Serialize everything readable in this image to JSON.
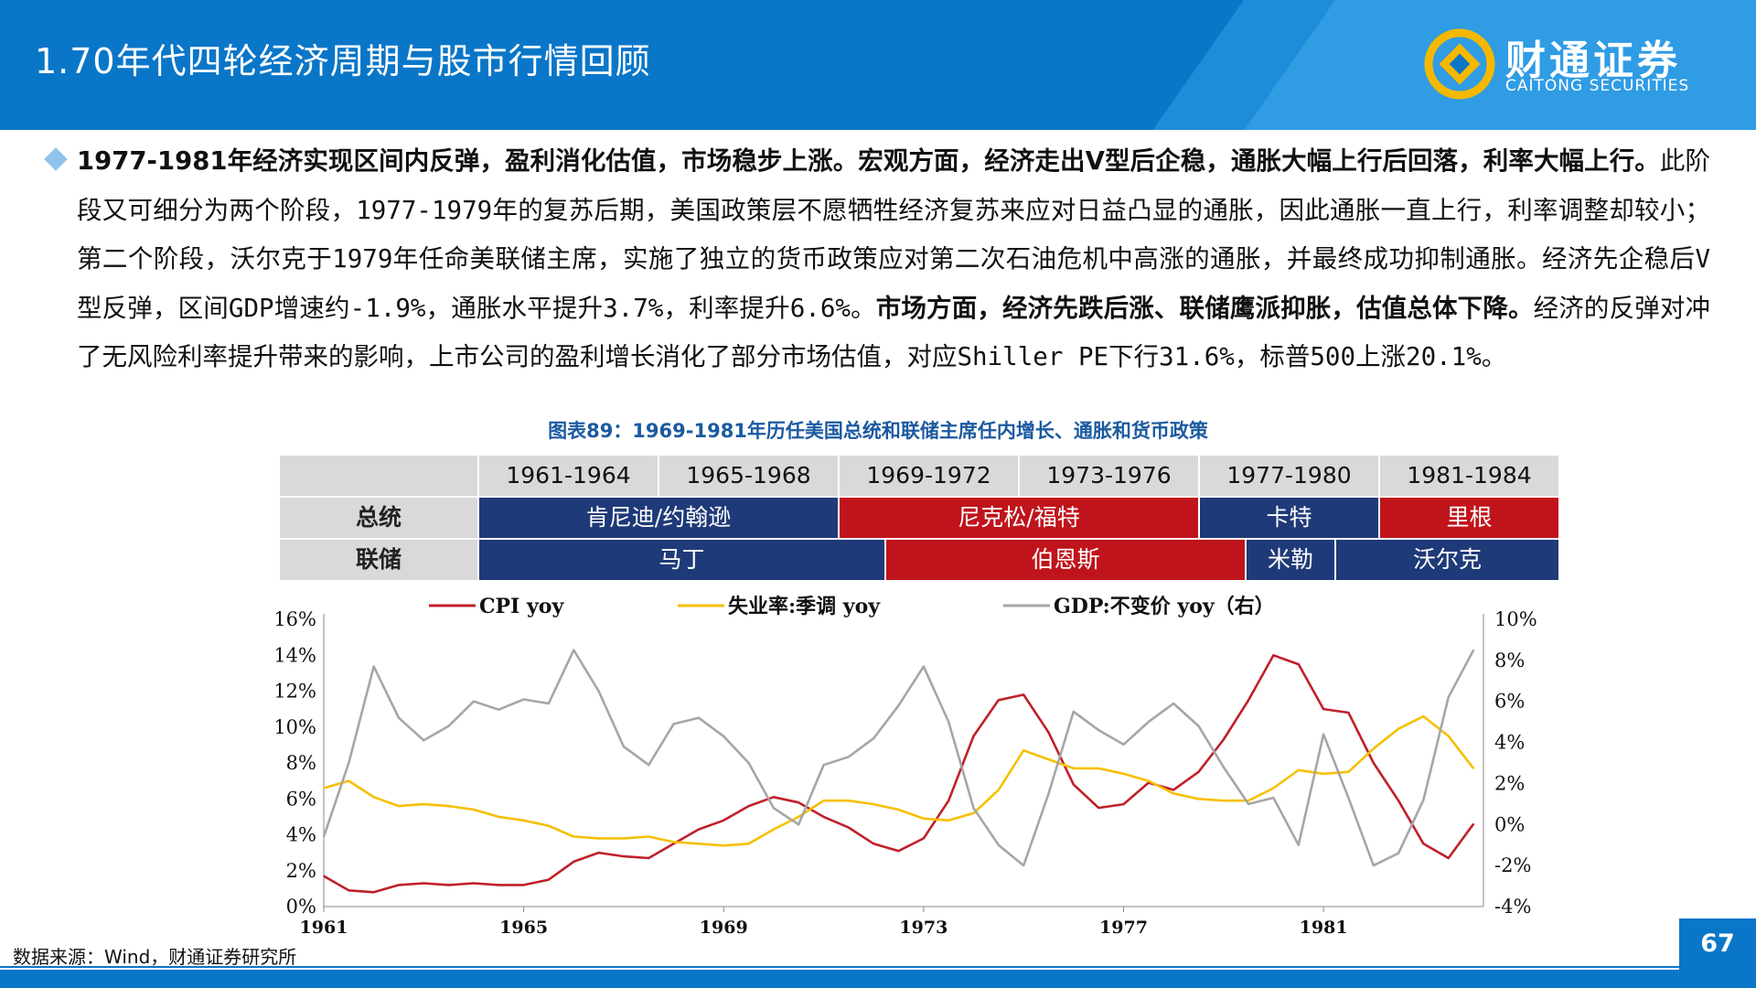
{
  "header": {
    "title": "1.70年代四轮经济周期与股市行情回顾",
    "logo_cn": "财通证券",
    "logo_en": "CAITONG SECURITIES"
  },
  "paragraph": {
    "bold_lead": "1977-1981年经济实现区间内反弹，盈利消化估值，市场稳步上涨。宏观方面，经济走出V型后企稳，通胀大幅上行后回落，利率大幅上行。",
    "text1": "此阶段又可细分为两个阶段，1977-1979年的复苏后期，美国政策层不愿牺牲经济复苏来应对日益凸显的通胀，因此通胀一直上行，利率调整却较小；第二个阶段，沃尔克于1979年任命美联储主席，实施了独立的货币政策应对第二次石油危机中高涨的通胀，并最终成功抑制通胀。经济先企稳后V型反弹，区间GDP增速约-1.9%，通胀水平提升3.7%，利率提升6.6%。",
    "bold_mid": "市场方面，经济先跌后涨、联储鹰派抑胀，估值总体下降。",
    "text2": "经济的反弹对冲了无风险利率提升带来的影响，上市公司的盈利增长消化了部分市场估值，对应Shiller PE下行31.6%，标普500上涨20.1%。"
  },
  "chart_title": "图表89：1969-1981年历任美国总统和联储主席任内增长、通胀和货币政策",
  "table": {
    "periods": [
      "1961-1964",
      "1965-1968",
      "1969-1972",
      "1973-1976",
      "1977-1980",
      "1981-1984"
    ],
    "president_label": "总统",
    "fed_label": "联储",
    "presidents": [
      "肯尼迪/约翰逊",
      "尼克松/福特",
      "卡特",
      "里根"
    ],
    "feds": [
      "马丁",
      "伯恩斯",
      "米勒",
      "沃尔克"
    ]
  },
  "colors": {
    "brand_blue": "#0a76c8",
    "navy": "#1f3a78",
    "red": "#c0141c",
    "cpi": "#c0202a",
    "unemployment": "#f5c000",
    "gdp": "#a6a6a6"
  },
  "chart_data": {
    "type": "line",
    "legend": [
      "CPI yoy",
      "失业率:季调 yoy",
      "GDP:不变价 yoy（右）"
    ],
    "x_ticks": [
      "1961",
      "1965",
      "1969",
      "1973",
      "1977",
      "1981"
    ],
    "y_left_ticks": [
      "0%",
      "2%",
      "4%",
      "6%",
      "8%",
      "10%",
      "12%",
      "14%",
      "16%"
    ],
    "y_right_ticks": [
      "-4%",
      "-2%",
      "0%",
      "2%",
      "4%",
      "6%",
      "8%",
      "10%"
    ],
    "ylim_left": [
      0,
      16
    ],
    "ylim_right": [
      -4,
      10
    ],
    "xlim": [
      1961,
      1984.2
    ],
    "series": [
      {
        "name": "CPI yoy",
        "axis": "left",
        "x": [
          1961.0,
          1961.5,
          1962.0,
          1962.5,
          1963.0,
          1963.5,
          1964.0,
          1964.5,
          1965.0,
          1965.5,
          1966.0,
          1966.5,
          1967.0,
          1967.5,
          1968.0,
          1968.5,
          1969.0,
          1969.5,
          1970.0,
          1970.5,
          1971.0,
          1971.5,
          1972.0,
          1972.5,
          1973.0,
          1973.5,
          1974.0,
          1974.5,
          1975.0,
          1975.5,
          1976.0,
          1976.5,
          1977.0,
          1977.5,
          1978.0,
          1978.5,
          1979.0,
          1979.5,
          1980.0,
          1980.5,
          1981.0,
          1981.5,
          1982.0,
          1982.5,
          1983.0,
          1983.5,
          1984.0
        ],
        "y": [
          1.7,
          0.9,
          0.8,
          1.2,
          1.3,
          1.2,
          1.3,
          1.2,
          1.2,
          1.5,
          2.5,
          3.0,
          2.8,
          2.7,
          3.5,
          4.3,
          4.8,
          5.6,
          6.1,
          5.8,
          5.0,
          4.4,
          3.5,
          3.1,
          3.8,
          5.9,
          9.5,
          11.5,
          11.8,
          9.7,
          6.8,
          5.5,
          5.7,
          6.9,
          6.5,
          7.5,
          9.3,
          11.5,
          14.0,
          13.5,
          11.0,
          10.8,
          8.0,
          5.9,
          3.5,
          2.7,
          4.6
        ]
      },
      {
        "name": "失业率:季调 yoy",
        "axis": "left",
        "x": [
          1961.0,
          1961.5,
          1962.0,
          1962.5,
          1963.0,
          1963.5,
          1964.0,
          1964.5,
          1965.0,
          1965.5,
          1966.0,
          1966.5,
          1967.0,
          1967.5,
          1968.0,
          1968.5,
          1969.0,
          1969.5,
          1970.0,
          1970.5,
          1971.0,
          1971.5,
          1972.0,
          1972.5,
          1973.0,
          1973.5,
          1974.0,
          1974.5,
          1975.0,
          1975.5,
          1976.0,
          1976.5,
          1977.0,
          1977.5,
          1978.0,
          1978.5,
          1979.0,
          1979.5,
          1980.0,
          1980.5,
          1981.0,
          1981.5,
          1982.0,
          1982.5,
          1983.0,
          1983.5,
          1984.0
        ],
        "y": [
          6.6,
          7.0,
          6.1,
          5.6,
          5.7,
          5.6,
          5.4,
          5.0,
          4.8,
          4.5,
          3.9,
          3.8,
          3.8,
          3.9,
          3.6,
          3.5,
          3.4,
          3.5,
          4.3,
          5.0,
          5.9,
          5.9,
          5.7,
          5.4,
          4.9,
          4.8,
          5.2,
          6.5,
          8.7,
          8.2,
          7.7,
          7.7,
          7.4,
          7.0,
          6.3,
          6.0,
          5.9,
          5.9,
          6.6,
          7.6,
          7.4,
          7.5,
          8.8,
          9.9,
          10.6,
          9.5,
          7.7
        ]
      },
      {
        "name": "GDP:不变价 yoy（右）",
        "axis": "right",
        "x": [
          1961.0,
          1961.5,
          1962.0,
          1962.5,
          1963.0,
          1963.5,
          1964.0,
          1964.5,
          1965.0,
          1965.5,
          1966.0,
          1966.5,
          1967.0,
          1967.5,
          1968.0,
          1968.5,
          1969.0,
          1969.5,
          1970.0,
          1970.5,
          1971.0,
          1971.5,
          1972.0,
          1972.5,
          1973.0,
          1973.5,
          1974.0,
          1974.5,
          1975.0,
          1975.5,
          1976.0,
          1976.5,
          1977.0,
          1977.5,
          1978.0,
          1978.5,
          1979.0,
          1979.5,
          1980.0,
          1980.5,
          1981.0,
          1981.5,
          1982.0,
          1982.5,
          1983.0,
          1983.5,
          1984.0
        ],
        "y": [
          -0.6,
          3.0,
          7.7,
          5.2,
          4.1,
          4.8,
          6.0,
          5.6,
          6.1,
          5.9,
          8.5,
          6.5,
          3.8,
          2.9,
          4.9,
          5.2,
          4.3,
          3.0,
          0.8,
          0.0,
          2.9,
          3.3,
          4.2,
          5.8,
          7.7,
          5.0,
          0.8,
          -1.0,
          -2.0,
          1.5,
          5.5,
          4.6,
          3.9,
          5.0,
          5.9,
          4.8,
          2.8,
          1.0,
          1.3,
          -1.0,
          4.4,
          1.3,
          -2.0,
          -1.4,
          1.2,
          6.2,
          8.5
        ]
      }
    ]
  },
  "source": "数据来源：Wind，财通证券研究所",
  "page_number": "67"
}
